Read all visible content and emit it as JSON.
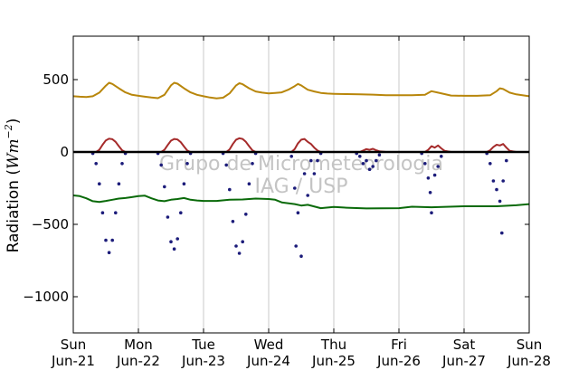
{
  "chart_data": {
    "type": "line",
    "ylabel": "Radiation (Wm⁻²)",
    "ylabel_prefix": "Radiation (",
    "ylabel_unit": "Wm",
    "ylabel_exp": "−2",
    "ylabel_suffix": ")",
    "ylim": [
      -1250,
      800
    ],
    "xlim": [
      0,
      7
    ],
    "grid": "vertical",
    "yticks": [
      500,
      0,
      -500,
      -1000
    ],
    "ytick_labels": [
      "500",
      "0",
      "−500",
      "−1000"
    ],
    "x_ticks": [
      {
        "day": "Sun",
        "date": "Jun-21"
      },
      {
        "day": "Mon",
        "date": "Jun-22"
      },
      {
        "day": "Tue",
        "date": "Jun-23"
      },
      {
        "day": "Wed",
        "date": "Jun-24"
      },
      {
        "day": "Thu",
        "date": "Jun-25"
      },
      {
        "day": "Fri",
        "date": "Jun-26"
      },
      {
        "day": "Sat",
        "date": "Jun-27"
      },
      {
        "day": "Sun",
        "date": "Jun-28"
      }
    ],
    "watermark": [
      "Grupo de Micrometeorologia",
      "IAG / USP"
    ],
    "colors": {
      "longwave_down": "#b8860b",
      "shortwave_up": "#a52a2a",
      "shortwave_down_negative": "#1c1c7a",
      "longwave_up_negative": "#0a6a0a",
      "zero_line": "#000000",
      "grid": "#c8c8c8"
    },
    "series": [
      {
        "key": "longwave_down",
        "style": "line",
        "x": [
          0.0,
          0.1,
          0.2,
          0.3,
          0.4,
          0.5,
          0.55,
          0.6,
          0.7,
          0.8,
          0.9,
          1.0,
          1.1,
          1.2,
          1.3,
          1.4,
          1.5,
          1.55,
          1.6,
          1.7,
          1.8,
          1.9,
          2.0,
          2.1,
          2.2,
          2.3,
          2.4,
          2.5,
          2.55,
          2.6,
          2.7,
          2.8,
          2.9,
          3.0,
          3.1,
          3.2,
          3.3,
          3.4,
          3.45,
          3.5,
          3.6,
          3.7,
          3.8,
          3.9,
          4.0,
          4.2,
          4.4,
          4.6,
          4.8,
          5.0,
          5.2,
          5.4,
          5.5,
          5.6,
          5.8,
          6.0,
          6.2,
          6.4,
          6.5,
          6.55,
          6.6,
          6.7,
          6.8,
          7.0
        ],
        "y": [
          385,
          382,
          380,
          385,
          410,
          458,
          478,
          470,
          440,
          412,
          395,
          388,
          382,
          376,
          372,
          395,
          460,
          478,
          472,
          440,
          412,
          395,
          385,
          376,
          370,
          375,
          405,
          460,
          475,
          468,
          440,
          418,
          410,
          405,
          408,
          412,
          430,
          455,
          470,
          460,
          430,
          418,
          408,
          404,
          402,
          400,
          398,
          396,
          392,
          392,
          392,
          395,
          420,
          410,
          390,
          388,
          388,
          392,
          420,
          440,
          435,
          410,
          398,
          385
        ]
      },
      {
        "key": "shortwave_up",
        "style": "line",
        "x": [
          0.0,
          0.35,
          0.4,
          0.45,
          0.5,
          0.55,
          0.6,
          0.65,
          0.7,
          0.75,
          0.8,
          1.0,
          1.35,
          1.4,
          1.45,
          1.5,
          1.55,
          1.6,
          1.65,
          1.7,
          1.75,
          1.8,
          2.0,
          2.35,
          2.4,
          2.45,
          2.5,
          2.55,
          2.6,
          2.65,
          2.7,
          2.75,
          2.8,
          3.0,
          3.35,
          3.4,
          3.45,
          3.5,
          3.55,
          3.6,
          3.65,
          3.7,
          3.75,
          3.8,
          4.0,
          4.4,
          4.45,
          4.5,
          4.55,
          4.6,
          4.65,
          4.7,
          4.8,
          5.0,
          5.4,
          5.45,
          5.5,
          5.55,
          5.6,
          5.65,
          5.7,
          5.8,
          6.0,
          6.35,
          6.4,
          6.45,
          6.5,
          6.55,
          6.6,
          6.65,
          6.7,
          6.8,
          7.0
        ],
        "y": [
          0,
          0,
          15,
          50,
          80,
          92,
          88,
          70,
          40,
          12,
          0,
          0,
          0,
          15,
          48,
          78,
          90,
          86,
          68,
          38,
          10,
          0,
          0,
          0,
          18,
          55,
          85,
          95,
          90,
          70,
          40,
          12,
          0,
          0,
          0,
          20,
          60,
          85,
          90,
          70,
          55,
          30,
          10,
          0,
          0,
          0,
          10,
          20,
          15,
          22,
          12,
          5,
          0,
          0,
          0,
          15,
          40,
          30,
          45,
          25,
          8,
          0,
          0,
          0,
          12,
          35,
          50,
          45,
          55,
          30,
          8,
          0,
          0
        ]
      },
      {
        "key": "shortwave_down_negative",
        "style": "points",
        "x": [
          0.3,
          0.35,
          0.4,
          0.45,
          0.5,
          0.55,
          0.6,
          0.65,
          0.7,
          0.75,
          0.8,
          1.3,
          1.35,
          1.4,
          1.45,
          1.5,
          1.55,
          1.6,
          1.65,
          1.7,
          1.75,
          1.8,
          2.3,
          2.35,
          2.4,
          2.45,
          2.5,
          2.55,
          2.6,
          2.65,
          2.7,
          2.75,
          2.8,
          3.35,
          3.4,
          3.42,
          3.45,
          3.5,
          3.55,
          3.6,
          3.65,
          3.7,
          3.75,
          3.8,
          4.35,
          4.4,
          4.45,
          4.5,
          4.55,
          4.6,
          4.65,
          4.7,
          5.35,
          5.4,
          5.45,
          5.48,
          5.5,
          5.55,
          5.6,
          5.65,
          6.35,
          6.4,
          6.45,
          6.5,
          6.55,
          6.58,
          6.6,
          6.65
        ],
        "y": [
          -10,
          -80,
          -220,
          -420,
          -610,
          -695,
          -610,
          -420,
          -220,
          -80,
          -10,
          -10,
          -90,
          -240,
          -450,
          -620,
          -670,
          -600,
          -420,
          -220,
          -80,
          -10,
          -10,
          -90,
          -260,
          -480,
          -650,
          -700,
          -620,
          -430,
          -220,
          -80,
          -10,
          -30,
          -250,
          -650,
          -420,
          -720,
          -150,
          -300,
          -60,
          -150,
          -60,
          -10,
          -10,
          -30,
          -80,
          -60,
          -120,
          -100,
          -60,
          -20,
          -10,
          -80,
          -180,
          -280,
          -420,
          -160,
          -100,
          -30,
          -10,
          -80,
          -200,
          -260,
          -340,
          -560,
          -200,
          -60
        ]
      },
      {
        "key": "longwave_up_negative",
        "style": "line",
        "x": [
          0.0,
          0.1,
          0.2,
          0.3,
          0.4,
          0.5,
          0.6,
          0.7,
          0.8,
          0.9,
          1.0,
          1.1,
          1.2,
          1.3,
          1.4,
          1.5,
          1.6,
          1.7,
          1.8,
          1.9,
          2.0,
          2.2,
          2.4,
          2.6,
          2.8,
          3.0,
          3.1,
          3.2,
          3.4,
          3.5,
          3.6,
          3.8,
          4.0,
          4.2,
          4.5,
          5.0,
          5.2,
          5.5,
          6.0,
          6.5,
          6.8,
          7.0
        ],
        "y": [
          -300,
          -305,
          -320,
          -340,
          -345,
          -338,
          -330,
          -322,
          -318,
          -312,
          -305,
          -302,
          -320,
          -335,
          -340,
          -330,
          -325,
          -318,
          -330,
          -335,
          -338,
          -338,
          -330,
          -328,
          -322,
          -325,
          -330,
          -348,
          -360,
          -370,
          -365,
          -388,
          -380,
          -385,
          -390,
          -388,
          -378,
          -382,
          -375,
          -375,
          -368,
          -360
        ]
      }
    ]
  }
}
